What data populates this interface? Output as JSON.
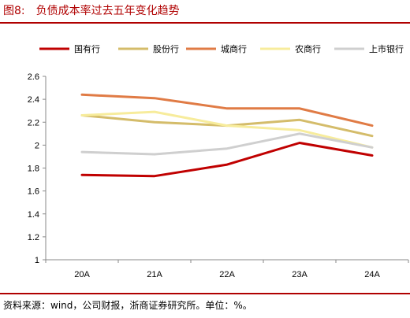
{
  "header": {
    "figure_label": "图8:",
    "title": "负债成本率过去五年变化趋势"
  },
  "footer": {
    "source": "资料来源：wind，公司财报，浙商证券研究所。单位：%。"
  },
  "colors": {
    "accent": "#b00000"
  },
  "chart_data": {
    "type": "line",
    "title": "负债成本率过去五年变化趋势",
    "xlabel": "",
    "ylabel": "",
    "categories": [
      "20A",
      "21A",
      "22A",
      "23A",
      "24A"
    ],
    "ylim": [
      1,
      2.6
    ],
    "yticks": [
      "1",
      "1.2",
      "1.4",
      "1.6",
      "1.8",
      "2",
      "2.2",
      "2.4",
      "2.6"
    ],
    "grid": false,
    "legend_position": "top",
    "series": [
      {
        "name": "国有行",
        "color": "#c00000",
        "values": [
          1.74,
          1.73,
          1.83,
          2.02,
          1.91
        ]
      },
      {
        "name": "股份行",
        "color": "#d4bc6a",
        "values": [
          2.26,
          2.2,
          2.17,
          2.22,
          2.08
        ]
      },
      {
        "name": "城商行",
        "color": "#e07b45",
        "values": [
          2.44,
          2.41,
          2.32,
          2.32,
          2.17
        ]
      },
      {
        "name": "农商行",
        "color": "#f7ec9c",
        "values": [
          2.26,
          2.29,
          2.17,
          2.13,
          1.98
        ]
      },
      {
        "name": "上市银行",
        "color": "#cfcfcf",
        "values": [
          1.94,
          1.92,
          1.97,
          2.1,
          1.98
        ]
      }
    ]
  }
}
